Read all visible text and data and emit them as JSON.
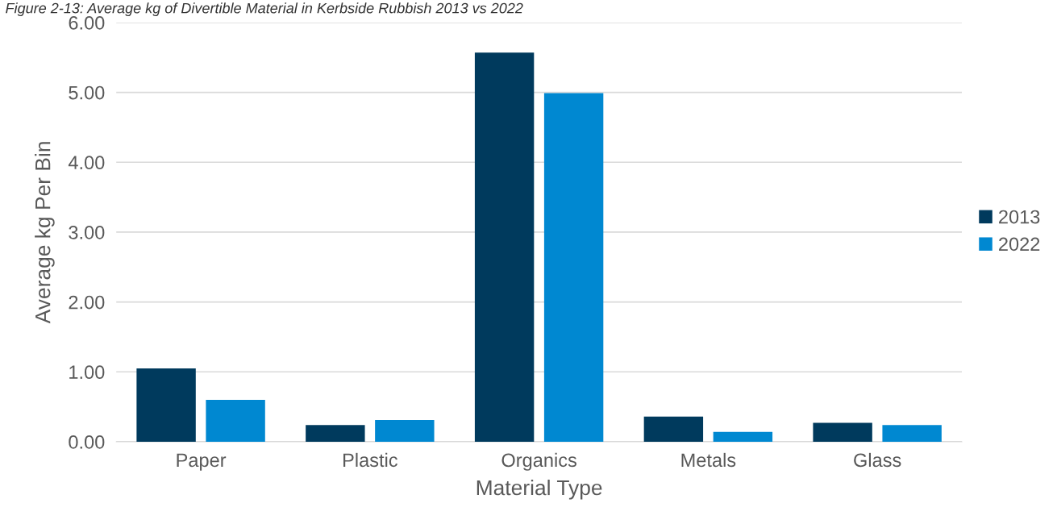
{
  "chart_data": {
    "type": "bar",
    "title": "Figure 2-13: Average kg of Divertible Material in Kerbside Rubbish 2013 vs 2022",
    "xlabel": "Material Type",
    "ylabel": "Average kg Per Bin",
    "categories": [
      "Paper",
      "Plastic",
      "Organics",
      "Metals",
      "Glass"
    ],
    "series": [
      {
        "name": "2013",
        "color": "#003a5d",
        "values": [
          1.05,
          0.24,
          5.57,
          0.36,
          0.27
        ]
      },
      {
        "name": "2022",
        "color": "#0088d1",
        "values": [
          0.6,
          0.31,
          4.99,
          0.14,
          0.24
        ]
      }
    ],
    "ylim": [
      0,
      6
    ],
    "yticks": [
      {
        "value": 0,
        "label": "0.00"
      },
      {
        "value": 1,
        "label": "1.00"
      },
      {
        "value": 2,
        "label": "2.00"
      },
      {
        "value": 3,
        "label": "3.00"
      },
      {
        "value": 4,
        "label": "4.00"
      },
      {
        "value": 5,
        "label": "5.00"
      },
      {
        "value": 6,
        "label": "6.00"
      }
    ],
    "grid": "y",
    "legend": "right"
  }
}
